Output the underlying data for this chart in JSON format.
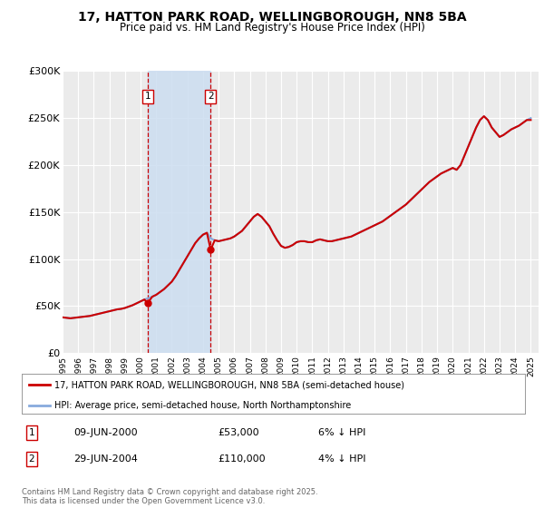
{
  "title": "17, HATTON PARK ROAD, WELLINGBOROUGH, NN8 5BA",
  "subtitle": "Price paid vs. HM Land Registry's House Price Index (HPI)",
  "title_fontsize": 10,
  "subtitle_fontsize": 8.5,
  "bg_color": "#ffffff",
  "plot_bg_color": "#ebebeb",
  "grid_color": "#ffffff",
  "ylabel_ticks": [
    "£0",
    "£50K",
    "£100K",
    "£150K",
    "£200K",
    "£250K",
    "£300K"
  ],
  "ytick_values": [
    0,
    50000,
    100000,
    150000,
    200000,
    250000,
    300000
  ],
  "ylim": [
    0,
    300000
  ],
  "xlim_start": 1995.0,
  "xlim_end": 2025.5,
  "purchase1_date": 2000.44,
  "purchase1_price": 53000,
  "purchase1_label": "1",
  "purchase2_date": 2004.49,
  "purchase2_price": 110000,
  "purchase2_label": "2",
  "shade_color": "#ccddf0",
  "dashed_color": "#cc0000",
  "property_line_color": "#cc0000",
  "hpi_line_color": "#88aadd",
  "legend_label_property": "17, HATTON PARK ROAD, WELLINGBOROUGH, NN8 5BA (semi-detached house)",
  "legend_label_hpi": "HPI: Average price, semi-detached house, North Northamptonshire",
  "table_row1": [
    "1",
    "09-JUN-2000",
    "£53,000",
    "6% ↓ HPI"
  ],
  "table_row2": [
    "2",
    "29-JUN-2004",
    "£110,000",
    "4% ↓ HPI"
  ],
  "footer": "Contains HM Land Registry data © Crown copyright and database right 2025.\nThis data is licensed under the Open Government Licence v3.0.",
  "hpi_data_years": [
    1995.0,
    1995.25,
    1995.5,
    1995.75,
    1996.0,
    1996.25,
    1996.5,
    1996.75,
    1997.0,
    1997.25,
    1997.5,
    1997.75,
    1998.0,
    1998.25,
    1998.5,
    1998.75,
    1999.0,
    1999.25,
    1999.5,
    1999.75,
    2000.0,
    2000.25,
    2000.5,
    2000.75,
    2001.0,
    2001.25,
    2001.5,
    2001.75,
    2002.0,
    2002.25,
    2002.5,
    2002.75,
    2003.0,
    2003.25,
    2003.5,
    2003.75,
    2004.0,
    2004.25,
    2004.5,
    2004.75,
    2005.0,
    2005.25,
    2005.5,
    2005.75,
    2006.0,
    2006.25,
    2006.5,
    2006.75,
    2007.0,
    2007.25,
    2007.5,
    2007.75,
    2008.0,
    2008.25,
    2008.5,
    2008.75,
    2009.0,
    2009.25,
    2009.5,
    2009.75,
    2010.0,
    2010.25,
    2010.5,
    2010.75,
    2011.0,
    2011.25,
    2011.5,
    2011.75,
    2012.0,
    2012.25,
    2012.5,
    2012.75,
    2013.0,
    2013.25,
    2013.5,
    2013.75,
    2014.0,
    2014.25,
    2014.5,
    2014.75,
    2015.0,
    2015.25,
    2015.5,
    2015.75,
    2016.0,
    2016.25,
    2016.5,
    2016.75,
    2017.0,
    2017.25,
    2017.5,
    2017.75,
    2018.0,
    2018.25,
    2018.5,
    2018.75,
    2019.0,
    2019.25,
    2019.5,
    2019.75,
    2020.0,
    2020.25,
    2020.5,
    2020.75,
    2021.0,
    2021.25,
    2021.5,
    2021.75,
    2022.0,
    2022.25,
    2022.5,
    2022.75,
    2023.0,
    2023.25,
    2023.5,
    2023.75,
    2024.0,
    2024.25,
    2024.5,
    2024.75,
    2025.0
  ],
  "hpi_data_values": [
    38000,
    37500,
    37000,
    37500,
    38000,
    38500,
    39000,
    39500,
    40500,
    41500,
    42500,
    43500,
    44500,
    45500,
    46500,
    47000,
    48000,
    49500,
    51000,
    53000,
    55000,
    57000,
    58500,
    60000,
    62000,
    65000,
    68000,
    72000,
    76000,
    82000,
    89000,
    96000,
    103000,
    110000,
    117000,
    122000,
    126000,
    128000,
    122000,
    120000,
    119000,
    120000,
    121000,
    122000,
    124000,
    127000,
    130000,
    135000,
    140000,
    145000,
    148000,
    145000,
    140000,
    135000,
    127000,
    120000,
    114000,
    112000,
    113000,
    115000,
    118000,
    119000,
    119000,
    118000,
    118000,
    120000,
    121000,
    120000,
    119000,
    119000,
    120000,
    121000,
    122000,
    123000,
    124000,
    126000,
    128000,
    130000,
    132000,
    134000,
    136000,
    138000,
    140000,
    143000,
    146000,
    149000,
    152000,
    155000,
    158000,
    162000,
    166000,
    170000,
    174000,
    178000,
    182000,
    185000,
    188000,
    191000,
    193000,
    195000,
    197000,
    195000,
    200000,
    210000,
    220000,
    230000,
    240000,
    248000,
    252000,
    248000,
    240000,
    235000,
    230000,
    232000,
    235000,
    238000,
    240000,
    242000,
    245000,
    248000,
    250000
  ],
  "prop_data_years": [
    1995.0,
    1995.25,
    1995.5,
    1995.75,
    1996.0,
    1996.25,
    1996.5,
    1996.75,
    1997.0,
    1997.25,
    1997.5,
    1997.75,
    1998.0,
    1998.25,
    1998.5,
    1998.75,
    1999.0,
    1999.25,
    1999.5,
    1999.75,
    2000.0,
    2000.25,
    2000.44,
    2000.75,
    2001.0,
    2001.25,
    2001.5,
    2001.75,
    2002.0,
    2002.25,
    2002.5,
    2002.75,
    2003.0,
    2003.25,
    2003.5,
    2003.75,
    2004.0,
    2004.25,
    2004.49,
    2004.75,
    2005.0,
    2005.25,
    2005.5,
    2005.75,
    2006.0,
    2006.25,
    2006.5,
    2006.75,
    2007.0,
    2007.25,
    2007.5,
    2007.75,
    2008.0,
    2008.25,
    2008.5,
    2008.75,
    2009.0,
    2009.25,
    2009.5,
    2009.75,
    2010.0,
    2010.25,
    2010.5,
    2010.75,
    2011.0,
    2011.25,
    2011.5,
    2011.75,
    2012.0,
    2012.25,
    2012.5,
    2012.75,
    2013.0,
    2013.25,
    2013.5,
    2013.75,
    2014.0,
    2014.25,
    2014.5,
    2014.75,
    2015.0,
    2015.25,
    2015.5,
    2015.75,
    2016.0,
    2016.25,
    2016.5,
    2016.75,
    2017.0,
    2017.25,
    2017.5,
    2017.75,
    2018.0,
    2018.25,
    2018.5,
    2018.75,
    2019.0,
    2019.25,
    2019.5,
    2019.75,
    2020.0,
    2020.25,
    2020.5,
    2020.75,
    2021.0,
    2021.25,
    2021.5,
    2021.75,
    2022.0,
    2022.25,
    2022.5,
    2022.75,
    2023.0,
    2023.25,
    2023.5,
    2023.75,
    2024.0,
    2024.25,
    2024.5,
    2024.75,
    2025.0
  ],
  "prop_data_values": [
    38000,
    37500,
    37000,
    37500,
    38000,
    38500,
    39000,
    39500,
    40500,
    41500,
    42500,
    43500,
    44500,
    45500,
    46500,
    47000,
    48000,
    49500,
    51000,
    53000,
    55000,
    57000,
    53000,
    60000,
    62000,
    65000,
    68000,
    72000,
    76000,
    82000,
    89000,
    96000,
    103000,
    110000,
    117000,
    122000,
    126000,
    128000,
    110000,
    120000,
    119000,
    120000,
    121000,
    122000,
    124000,
    127000,
    130000,
    135000,
    140000,
    145000,
    148000,
    145000,
    140000,
    135000,
    127000,
    120000,
    114000,
    112000,
    113000,
    115000,
    118000,
    119000,
    119000,
    118000,
    118000,
    120000,
    121000,
    120000,
    119000,
    119000,
    120000,
    121000,
    122000,
    123000,
    124000,
    126000,
    128000,
    130000,
    132000,
    134000,
    136000,
    138000,
    140000,
    143000,
    146000,
    149000,
    152000,
    155000,
    158000,
    162000,
    166000,
    170000,
    174000,
    178000,
    182000,
    185000,
    188000,
    191000,
    193000,
    195000,
    197000,
    195000,
    200000,
    210000,
    220000,
    230000,
    240000,
    248000,
    252000,
    248000,
    240000,
    235000,
    230000,
    232000,
    235000,
    238000,
    240000,
    242000,
    245000,
    248000,
    248000
  ]
}
